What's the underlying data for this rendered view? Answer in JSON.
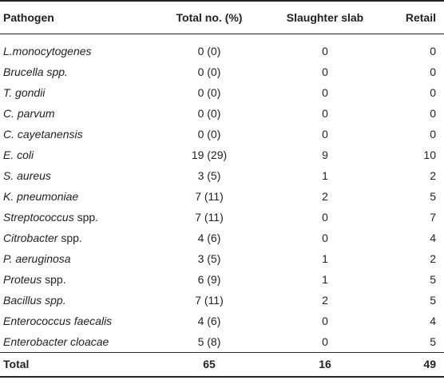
{
  "table": {
    "headers": [
      "Pathogen",
      "Total no. (%)",
      "Slaughter slab",
      "Retail"
    ],
    "rows": [
      {
        "pathogen_italic": "L.monocytogenes",
        "pathogen_suffix": "",
        "total": "0 (0)",
        "slaughter": "0",
        "retail": "0"
      },
      {
        "pathogen_italic": "Brucella spp.",
        "pathogen_suffix": "",
        "total": "0 (0)",
        "slaughter": "0",
        "retail": "0"
      },
      {
        "pathogen_italic": "T. gondii",
        "pathogen_suffix": "",
        "total": "0 (0)",
        "slaughter": "0",
        "retail": "0"
      },
      {
        "pathogen_italic": "C. parvum",
        "pathogen_suffix": "",
        "total": "0 (0)",
        "slaughter": "0",
        "retail": "0"
      },
      {
        "pathogen_italic": "C. cayetanensis",
        "pathogen_suffix": "",
        "total": "0 (0)",
        "slaughter": "0",
        "retail": "0"
      },
      {
        "pathogen_italic": "E. coli",
        "pathogen_suffix": "",
        "total": "19 (29)",
        "slaughter": "9",
        "retail": "10"
      },
      {
        "pathogen_italic": "S. aureus",
        "pathogen_suffix": "",
        "total": "3 (5)",
        "slaughter": "1",
        "retail": "2"
      },
      {
        "pathogen_italic": "K. pneumoniae",
        "pathogen_suffix": "",
        "total": "7 (11)",
        "slaughter": "2",
        "retail": "5"
      },
      {
        "pathogen_italic": "Streptococcus",
        "pathogen_suffix": " spp.",
        "total": "7 (11)",
        "slaughter": "0",
        "retail": "7"
      },
      {
        "pathogen_italic": "Citrobacter",
        "pathogen_suffix": " spp.",
        "total": "4 (6)",
        "slaughter": "0",
        "retail": "4"
      },
      {
        "pathogen_italic": "P. aeruginosa",
        "pathogen_suffix": "",
        "total": "3 (5)",
        "slaughter": "1",
        "retail": "2"
      },
      {
        "pathogen_italic": "Proteus",
        "pathogen_suffix": " spp.",
        "total": "6 (9)",
        "slaughter": "1",
        "retail": "5"
      },
      {
        "pathogen_italic": "Bacillus spp.",
        "pathogen_suffix": "",
        "total": "7 (11)",
        "slaughter": "2",
        "retail": "5"
      },
      {
        "pathogen_italic": "Enterococcus faecalis",
        "pathogen_suffix": "",
        "total": "4 (6)",
        "slaughter": "0",
        "retail": "4"
      },
      {
        "pathogen_italic": "Enterobacter cloacae",
        "pathogen_suffix": "",
        "total": "5 (8)",
        "slaughter": "0",
        "retail": "5"
      }
    ],
    "total_row": {
      "label": "Total",
      "total": "65",
      "slaughter": "16",
      "retail": "49"
    }
  }
}
